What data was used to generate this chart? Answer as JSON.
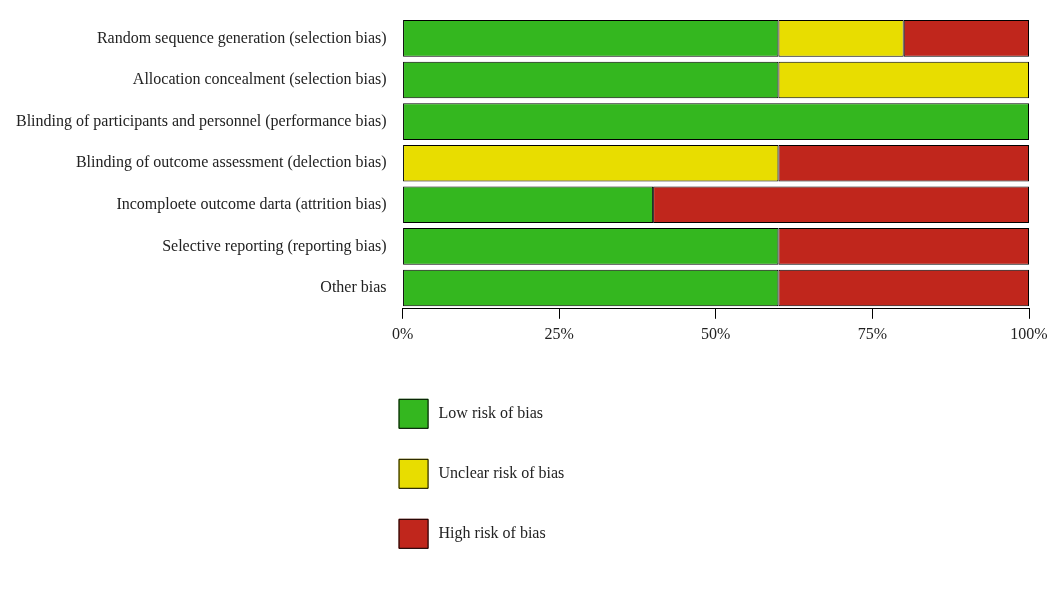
{
  "chart_data": {
    "type": "bar",
    "orientation": "horizontal",
    "stacked": true,
    "categories": [
      "Random sequence generation (selection bias)",
      "Allocation concealment (selection bias)",
      "Blinding of participants and personnel (performance bias)",
      "Blinding of outcome assessment (delection bias)",
      "Incomploete outcome darta (attrition bias)",
      "Selective reporting (reporting bias)",
      "Other bias"
    ],
    "series": [
      {
        "name": "Low risk of bias",
        "color": "#34b71f",
        "values": [
          60,
          60,
          100,
          0,
          40,
          60,
          60
        ]
      },
      {
        "name": "Unclear risk of bias",
        "color": "#e8dd00",
        "values": [
          20,
          40,
          0,
          60,
          0,
          0,
          0
        ]
      },
      {
        "name": "High risk of bias",
        "color": "#c0261c",
        "values": [
          20,
          0,
          0,
          40,
          60,
          40,
          40
        ]
      }
    ],
    "xlim": [
      0,
      100
    ],
    "xticks": [
      {
        "value": 0,
        "label": "0%"
      },
      {
        "value": 25,
        "label": "25%"
      },
      {
        "value": 50,
        "label": "50%"
      },
      {
        "value": 75,
        "label": "75%"
      },
      {
        "value": 100,
        "label": "100%"
      }
    ],
    "grid": false,
    "legend": "bottom"
  }
}
